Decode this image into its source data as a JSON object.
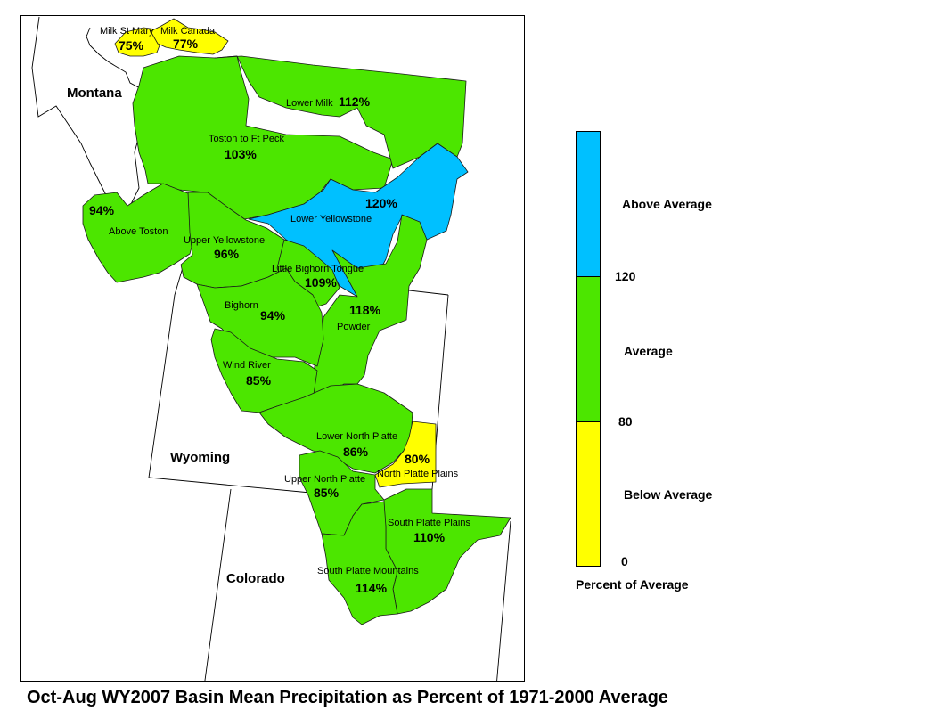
{
  "colors": {
    "above": "#00C0FF",
    "average": "#4CE600",
    "below": "#FFFF00"
  },
  "states": {
    "montana": "Montana",
    "wyoming": "Wyoming",
    "colorado": "Colorado"
  },
  "basins": {
    "milk_st_mary": {
      "name": "Milk St Mary",
      "pct": "75%",
      "value": 75
    },
    "milk_canada": {
      "name": "Milk Canada",
      "pct": "77%",
      "value": 77
    },
    "lower_milk": {
      "name": "Lower Milk",
      "pct": "112%",
      "value": 112
    },
    "toston_ft_peck": {
      "name": "Toston to Ft Peck",
      "pct": "103%",
      "value": 103
    },
    "lower_yellowstone": {
      "name": "Lower Yellowstone",
      "pct": "120%",
      "value": 120
    },
    "above_toston": {
      "name": "Above Toston",
      "pct": "94%",
      "value": 94
    },
    "upper_yellowstone": {
      "name": "Upper Yellowstone",
      "pct": "96%",
      "value": 96
    },
    "little_bighorn_tongue": {
      "name": "Little Bighorn Tongue",
      "pct": "109%",
      "value": 109
    },
    "powder": {
      "name": "Powder",
      "pct": "118%",
      "value": 118
    },
    "bighorn": {
      "name": "Bighorn",
      "pct": "94%",
      "value": 94
    },
    "wind_river": {
      "name": "Wind River",
      "pct": "85%",
      "value": 85
    },
    "lower_north_platte": {
      "name": "Lower North Platte",
      "pct": "86%",
      "value": 86
    },
    "north_platte_plains": {
      "name": "North Platte Plains",
      "pct": "80%",
      "value": 80
    },
    "upper_north_platte": {
      "name": "Upper North Platte",
      "pct": "85%",
      "value": 85
    },
    "south_platte_plains": {
      "name": "South Platte Plains",
      "pct": "110%",
      "value": 110
    },
    "south_platte_mountains": {
      "name": "South Platte Mountains",
      "pct": "114%",
      "value": 114
    }
  },
  "legend": {
    "above_label": "Above Average",
    "average_label": "Average",
    "below_label": "Below Average",
    "tick_120": "120",
    "tick_80": "80",
    "tick_0": "0",
    "title": "Percent of Average"
  },
  "caption": "Oct-Aug WY2007 Basin Mean Precipitation as Percent of 1971-2000 Average"
}
